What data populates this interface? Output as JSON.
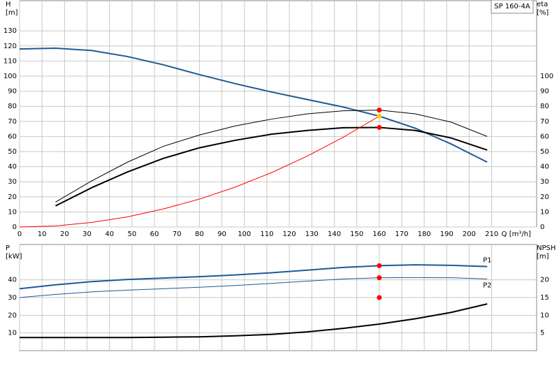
{
  "chart_data": [
    {
      "type": "line",
      "title": "SP 160-4A",
      "ylabel": [
        "H",
        "[m]"
      ],
      "y2label": [
        "eta",
        "[%]"
      ],
      "xlabel": "Q [m³/h]",
      "x": [
        0,
        16,
        32,
        48,
        64,
        80,
        96,
        112,
        128,
        144,
        160,
        176,
        192,
        208
      ],
      "series": [
        {
          "color": "#1f5a96",
          "values": [
            118,
            118.5,
            117,
            113,
            107.5,
            101,
            95,
            89.5,
            84.5,
            79.5,
            73.5,
            65.5,
            55,
            43
          ]
        },
        {
          "color": "#000000",
          "axis": "y2",
          "values": [
            null,
            16.5,
            30.5,
            43,
            53.5,
            61,
            67,
            71.5,
            75,
            77,
            77.5,
            75,
            69.5,
            60
          ]
        },
        {
          "color": "#000000",
          "axis": "y2",
          "values": [
            null,
            14,
            26,
            36.5,
            45.5,
            52.5,
            57.5,
            61.5,
            64,
            65.8,
            66,
            64,
            59,
            51
          ]
        },
        {
          "color": "#ff0000",
          "values": [
            0,
            0.7,
            3,
            6.7,
            12,
            18.5,
            26.5,
            36,
            47,
            59.5,
            73.5,
            null,
            null,
            null
          ]
        }
      ],
      "markers": {
        "x": [
          160,
          160,
          160
        ],
        "values": [
          77.5,
          73.5,
          66
        ],
        "colors": [
          "#ff0000",
          "#ffcc00",
          "#ff0000"
        ]
      },
      "xlim": [
        0,
        230
      ],
      "xticks": [
        0,
        10,
        20,
        30,
        40,
        50,
        60,
        70,
        80,
        90,
        100,
        110,
        120,
        130,
        140,
        150,
        160,
        170,
        180,
        190,
        200,
        210
      ],
      "ylim": [
        0,
        150
      ],
      "yticks": [
        0,
        10,
        20,
        30,
        40,
        50,
        60,
        70,
        80,
        90,
        100,
        110,
        120,
        130
      ],
      "y2lim": [
        0,
        150
      ],
      "y2ticks": [
        0,
        10,
        20,
        30,
        40,
        50,
        60,
        70,
        80,
        90,
        100
      ],
      "grid": true
    },
    {
      "type": "line",
      "ylabel": [
        "P",
        "[kW]"
      ],
      "y2label": [
        "NPSH",
        "[m]"
      ],
      "x": [
        0,
        16,
        32,
        48,
        64,
        80,
        96,
        112,
        128,
        144,
        160,
        176,
        192,
        208
      ],
      "series": [
        {
          "name": "P1",
          "color": "#1f5a96",
          "values": [
            35,
            37.2,
            39,
            40.2,
            41,
            41.8,
            42.8,
            44,
            45.5,
            47,
            48,
            48.5,
            48.2,
            47.5
          ]
        },
        {
          "name": "P2",
          "color": "#1f5a96",
          "values": [
            30,
            31.8,
            33.2,
            34.2,
            35,
            35.8,
            36.8,
            38,
            39.3,
            40.5,
            41.2,
            41.3,
            41.2,
            40.5
          ]
        },
        {
          "color": "#000000",
          "axis": "y2",
          "values": [
            3.7,
            3.7,
            3.7,
            3.7,
            3.8,
            3.9,
            4.2,
            4.6,
            5.3,
            6.3,
            7.5,
            9,
            10.8,
            13.2
          ]
        }
      ],
      "markers": {
        "x": [
          160,
          160,
          160
        ],
        "values": [
          48,
          41.2,
          15
        ],
        "colors": [
          "#ff0000",
          "#ff0000",
          "#ff0000"
        ]
      },
      "xlim": [
        0,
        230
      ],
      "ylim": [
        0,
        60
      ],
      "yticks": [
        10,
        20,
        30,
        40
      ],
      "y2lim": [
        0,
        30
      ],
      "y2ticks": [
        5,
        10,
        15,
        20
      ],
      "grid": true
    }
  ]
}
